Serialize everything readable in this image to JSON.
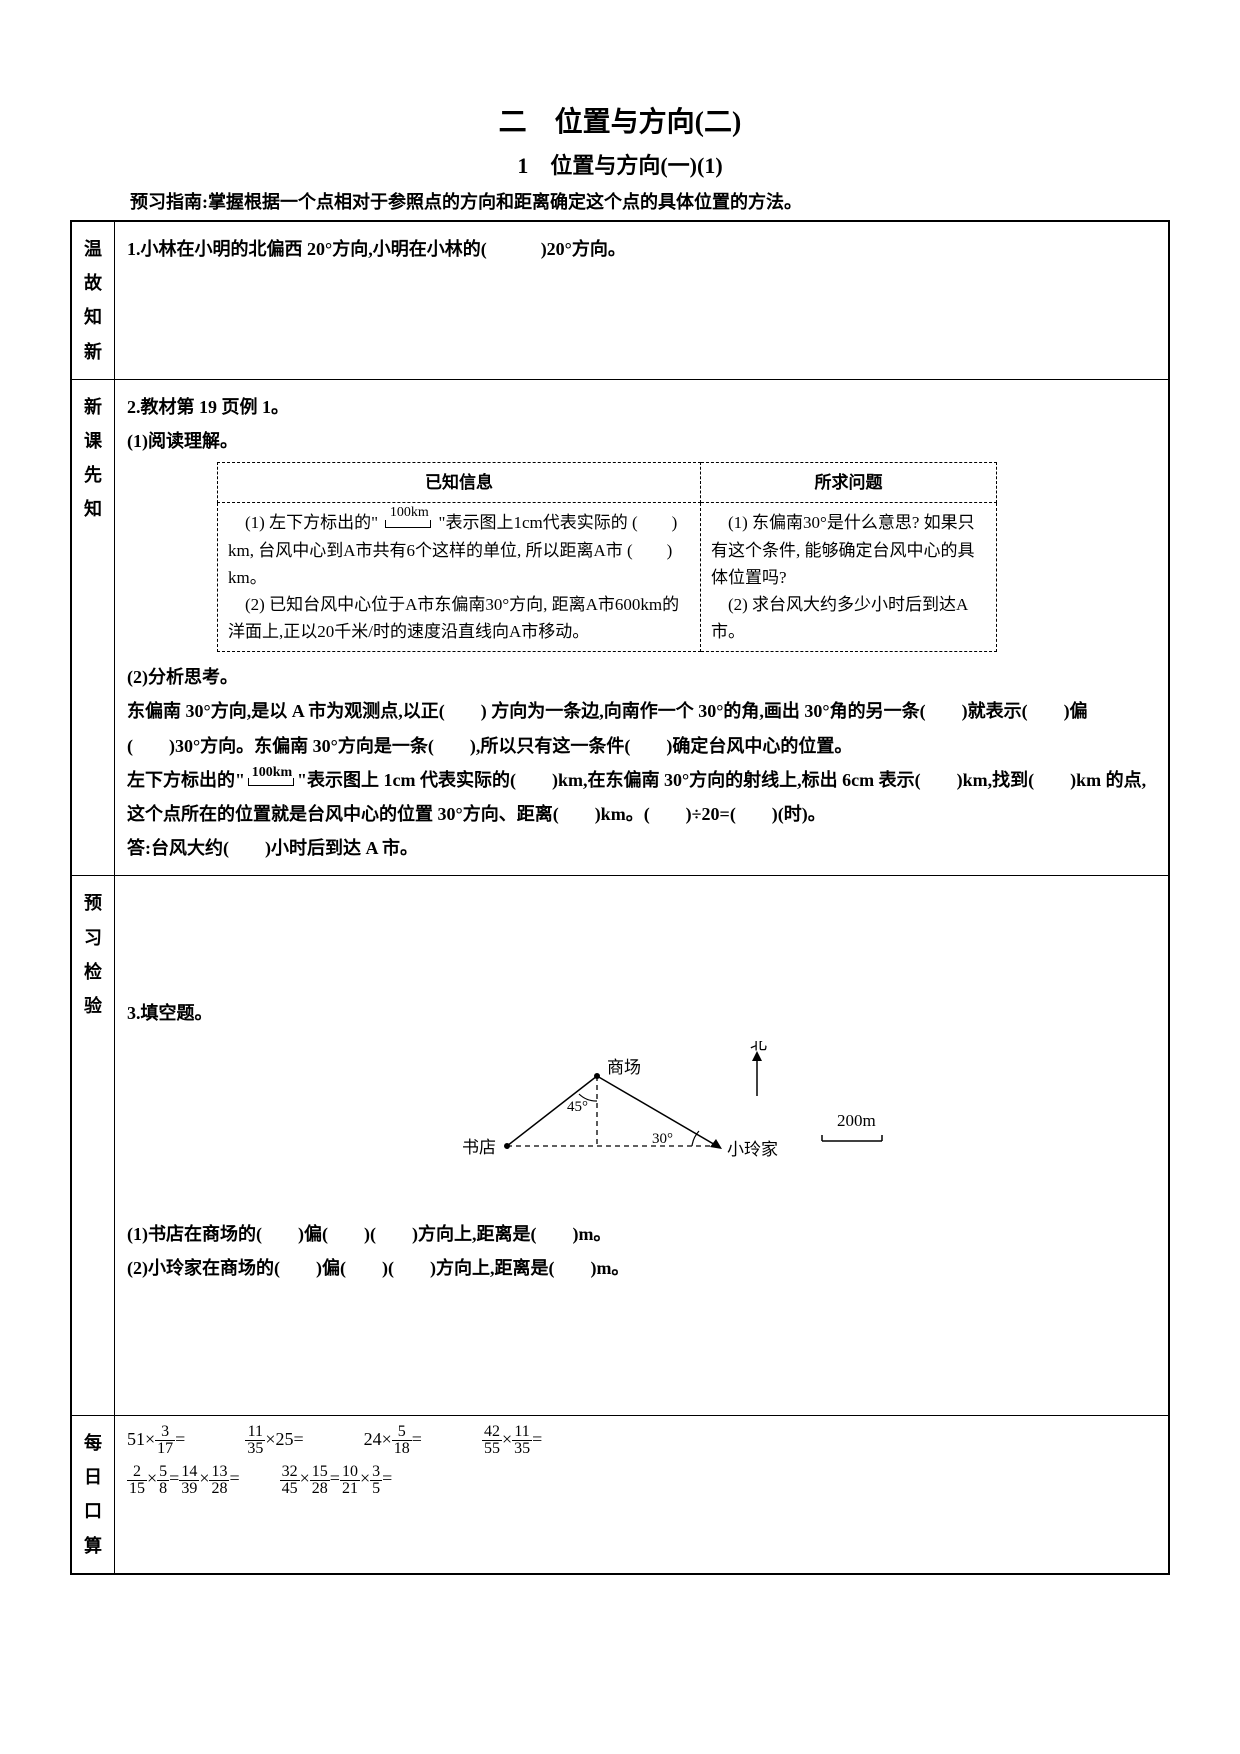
{
  "title": "二　位置与方向(二)",
  "subtitle": "1　位置与方向(一)(1)",
  "guide": "预习指南:掌握根据一个点相对于参照点的方向和距离确定这个点的具体位置的方法。",
  "sections": {
    "s1": {
      "label": "温故知新"
    },
    "s2": {
      "label": "新课先知"
    },
    "s3": {
      "label": "预习检验"
    },
    "s4": {
      "label": "每日口算"
    }
  },
  "q1": "1.小林在小明的北偏西 20°方向,小明在小林的(　　　)20°方向。",
  "q2_head": "2.教材第 19 页例 1。",
  "q2_read": "(1)阅读理解。",
  "info_table": {
    "col1": "已知信息",
    "col2": "所求问题",
    "left": "　(1) 左下方标出的\" 100km \"表示图上1cm代表实际的 (　　) km, 台风中心到A市共有6个这样的单位, 所以距离A市 (　　) km。\n　(2) 已知台风中心位于A市东偏南30°方向, 距离A市600km的洋面上,正以20千米/时的速度沿直线向A市移动。",
    "right": "　(1) 东偏南30°是什么意思? 如果只有这个条件, 能够确定台风中心的具体位置吗?\n　(2) 求台风大约多少小时后到达A市。"
  },
  "q2_think": "(2)分析思考。",
  "q2_body1": "东偏南 30°方向,是以 A 市为观测点,以正(　　) 方向为一条边,向南作一个 30°的角,画出 30°角的另一条(　　)就表示(　　)偏(　　)30°方向。东偏南 30°方向是一条(　　),所以只有这一条件(　　)确定台风中心的位置。",
  "q2_body2a": "左下方标出的\"",
  "q2_body2b": "\"表示图上 1cm 代表实际的(　　)km,在东偏南 30°方向的射线上,标出 6cm 表示(　　)km,找到(　　)km 的点,这个点所在的位置就是台风中心的位置 30°方向、距离(　　)km。(　　)÷20=(　　)(时)。",
  "q2_ans": "答:台风大约(　　)小时后到达 A 市。",
  "q3_head": "3.填空题。",
  "diagram": {
    "north_label": "北",
    "mall": "商场",
    "bookstore": "书店",
    "home": "小玲家",
    "angle1": "45°",
    "angle2": "30°",
    "scale_label": "200m",
    "colors": {
      "line": "#000000",
      "dash": "#000000"
    }
  },
  "q3_1": "(1)书店在商场的(　　)偏(　　)(　　)方向上,距离是(　　)m。",
  "q3_2": "(2)小玲家在商场的(　　)偏(　　)(　　)方向上,距离是(　　)m。",
  "calc": {
    "c1": {
      "a": "51×",
      "n": "3",
      "d": "17",
      "eq": "="
    },
    "c2": {
      "n": "11",
      "d": "35",
      "a": "×25=",
      "pre": ""
    },
    "c3": {
      "a": "24×",
      "n": "5",
      "d": "18",
      "eq": "="
    },
    "c4": {
      "n1": "42",
      "d1": "55",
      "n2": "11",
      "d2": "35",
      "eq": "="
    },
    "c5": {
      "n1": "2",
      "d1": "15",
      "n2": "5",
      "d2": "8",
      "n3": "14",
      "d3": "39",
      "n4": "13",
      "d4": "28"
    },
    "c6": {
      "n1": "32",
      "d1": "45",
      "n2": "15",
      "d2": "28",
      "n3": "10",
      "d3": "21",
      "n4": "3",
      "d4": "5"
    }
  },
  "scale_text": "100km"
}
